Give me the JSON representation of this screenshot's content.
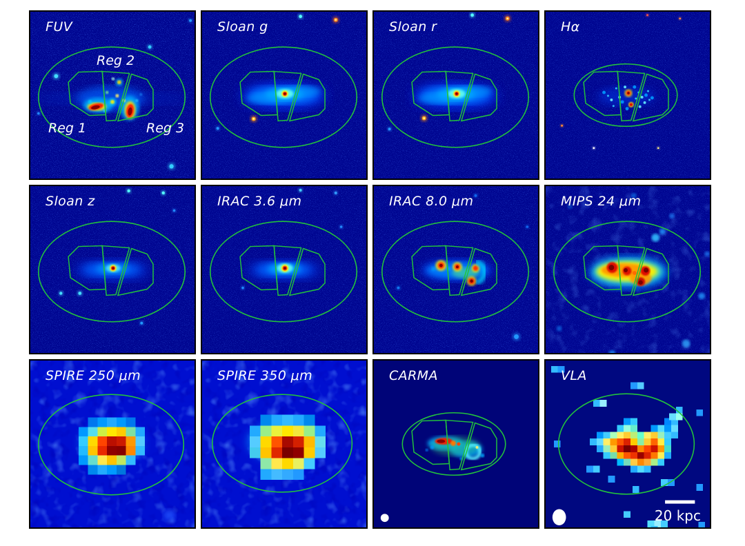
{
  "figure": {
    "type": "multiwavelength-galaxy-panel-figure",
    "grid": {
      "rows": 3,
      "cols": 4
    },
    "colors": {
      "overlay_green": "#22c23c",
      "background_navy": "#000590",
      "panel_border": "#000000",
      "label_text": "#ffffff",
      "colormap": "jet",
      "beam_marker": "#ffffff",
      "scale_bar": "#ffffff"
    },
    "panels": [
      {
        "id": "fuv",
        "label": "FUV",
        "overlays": [
          "aperture-ellipse",
          "region-polygons"
        ],
        "region_labels": {
          "reg1": "Reg 1",
          "reg2": "Reg 2",
          "reg3": "Reg 3"
        }
      },
      {
        "id": "sloan-g",
        "label": "Sloan g",
        "overlays": [
          "aperture-ellipse",
          "region-polygons"
        ]
      },
      {
        "id": "sloan-r",
        "label": "Sloan r",
        "overlays": [
          "aperture-ellipse",
          "region-polygons"
        ]
      },
      {
        "id": "halpha",
        "label": "Hα",
        "overlays": [
          "aperture-ellipse",
          "region-polygons"
        ]
      },
      {
        "id": "sloan-z",
        "label": "Sloan z",
        "overlays": [
          "aperture-ellipse",
          "region-polygons"
        ]
      },
      {
        "id": "irac-3-6",
        "label": "IRAC 3.6 μm",
        "overlays": [
          "aperture-ellipse",
          "region-polygons"
        ]
      },
      {
        "id": "irac-8-0",
        "label": "IRAC 8.0 μm",
        "overlays": [
          "aperture-ellipse",
          "region-polygons"
        ]
      },
      {
        "id": "mips-24",
        "label": "MIPS 24 μm",
        "overlays": [
          "aperture-ellipse",
          "region-polygons"
        ]
      },
      {
        "id": "spire-250",
        "label": "SPIRE 250 μm",
        "overlays": [
          "aperture-ellipse"
        ]
      },
      {
        "id": "spire-350",
        "label": "SPIRE 350 μm",
        "overlays": [
          "aperture-ellipse"
        ]
      },
      {
        "id": "carma",
        "label": "CARMA",
        "overlays": [
          "aperture-ellipse",
          "region-polygons"
        ],
        "beam_marker": true
      },
      {
        "id": "vla",
        "label": "VLA",
        "overlays": [
          "aperture-ellipse"
        ],
        "beam_marker": true,
        "scale_bar_label": "20 kpc"
      }
    ]
  }
}
